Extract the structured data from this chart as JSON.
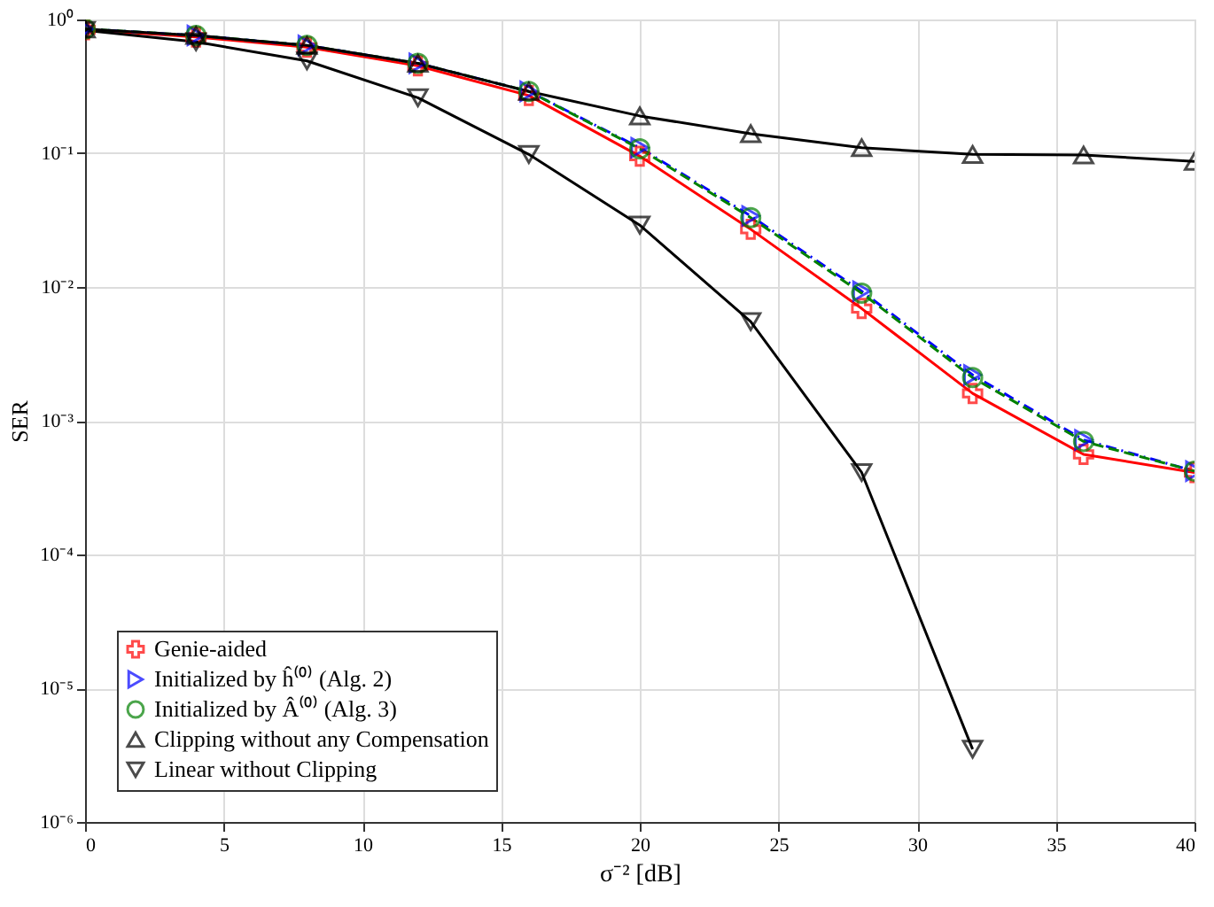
{
  "chart_data": {
    "type": "line",
    "xlabel": "σ⁻² [dB]",
    "ylabel": "SER",
    "log": "y",
    "grid": true,
    "legend": "bottom left",
    "x": [
      0,
      4,
      8,
      12,
      16,
      20,
      24,
      28,
      32,
      36,
      40
    ],
    "xlim": [
      0,
      40
    ],
    "xticks": [
      0,
      5,
      10,
      15,
      20,
      25,
      30,
      35,
      40
    ],
    "ylim": [
      1e-06,
      1
    ],
    "yticks": [
      {
        "value": 1e-06,
        "label": "10⁻⁶"
      },
      {
        "value": 1e-05,
        "label": "10⁻⁵"
      },
      {
        "value": 0.0001,
        "label": "10⁻⁴"
      },
      {
        "value": 0.001,
        "label": "10⁻³"
      },
      {
        "value": 0.01,
        "label": "10⁻²"
      },
      {
        "value": 0.1,
        "label": "10⁻¹"
      },
      {
        "value": 1,
        "label": "10⁰"
      }
    ],
    "series": [
      {
        "name": "Genie-aided",
        "color": "#ff0000",
        "marker": "cross",
        "line_style": "solid",
        "values": [
          0.84,
          0.74,
          0.62,
          0.45,
          0.27,
          0.095,
          0.027,
          0.0069,
          0.0016,
          0.00056,
          0.00041
        ]
      },
      {
        "name": "Initialized by ĥ⁽⁰⁾ (Alg. 2)",
        "color": "#0000ff",
        "marker": "triangle-right",
        "line_style": "dashdot",
        "values": [
          0.85,
          0.76,
          0.64,
          0.47,
          0.29,
          0.11,
          0.034,
          0.0093,
          0.0022,
          0.00072,
          0.00042
        ]
      },
      {
        "name": "Initialized by Â⁽⁰⁾ (Alg. 3)",
        "color": "#008000",
        "marker": "circle",
        "line_style": "dashed",
        "values": [
          0.85,
          0.76,
          0.64,
          0.47,
          0.29,
          0.108,
          0.033,
          0.009,
          0.0021,
          0.0007,
          0.00042
        ]
      },
      {
        "name": "Clipping without any Compensation",
        "color": "#000000",
        "marker": "triangle-up",
        "line_style": "solid",
        "values": [
          0.85,
          0.76,
          0.64,
          0.47,
          0.29,
          0.19,
          0.14,
          0.11,
          0.098,
          0.097,
          0.087
        ]
      },
      {
        "name": "Linear without Clipping",
        "color": "#000000",
        "marker": "triangle-down",
        "line_style": "solid",
        "values": [
          0.83,
          0.68,
          0.49,
          0.26,
          0.098,
          0.029,
          0.0055,
          0.00041,
          3.5e-06,
          null,
          null
        ]
      }
    ]
  }
}
